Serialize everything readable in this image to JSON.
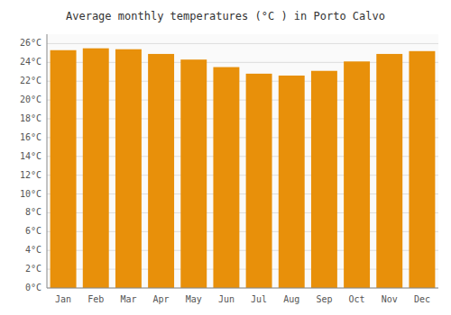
{
  "chart_data": {
    "type": "bar",
    "title": "Average monthly temperatures (°C ) in Porto Calvo",
    "categories": [
      "Jan",
      "Feb",
      "Mar",
      "Apr",
      "May",
      "Jun",
      "Jul",
      "Aug",
      "Sep",
      "Oct",
      "Nov",
      "Dec"
    ],
    "values": [
      25.3,
      25.5,
      25.4,
      24.9,
      24.3,
      23.5,
      22.8,
      22.6,
      23.1,
      24.1,
      24.9,
      25.2
    ],
    "color": "#E8900A",
    "ylim": [
      0,
      27
    ],
    "yticks": [
      {
        "value": 0,
        "label": "0°C"
      },
      {
        "value": 2,
        "label": "2°C"
      },
      {
        "value": 4,
        "label": "4°C"
      },
      {
        "value": 6,
        "label": "6°C"
      },
      {
        "value": 8,
        "label": "8°C"
      },
      {
        "value": 10,
        "label": "10°C"
      },
      {
        "value": 12,
        "label": "12°C"
      },
      {
        "value": 14,
        "label": "14°C"
      },
      {
        "value": 16,
        "label": "16°C"
      },
      {
        "value": 18,
        "label": "18°C"
      },
      {
        "value": 20,
        "label": "20°C"
      },
      {
        "value": 22,
        "label": "22°C"
      },
      {
        "value": 24,
        "label": "24°C"
      },
      {
        "value": 26,
        "label": "26°C"
      }
    ],
    "grid": true
  }
}
